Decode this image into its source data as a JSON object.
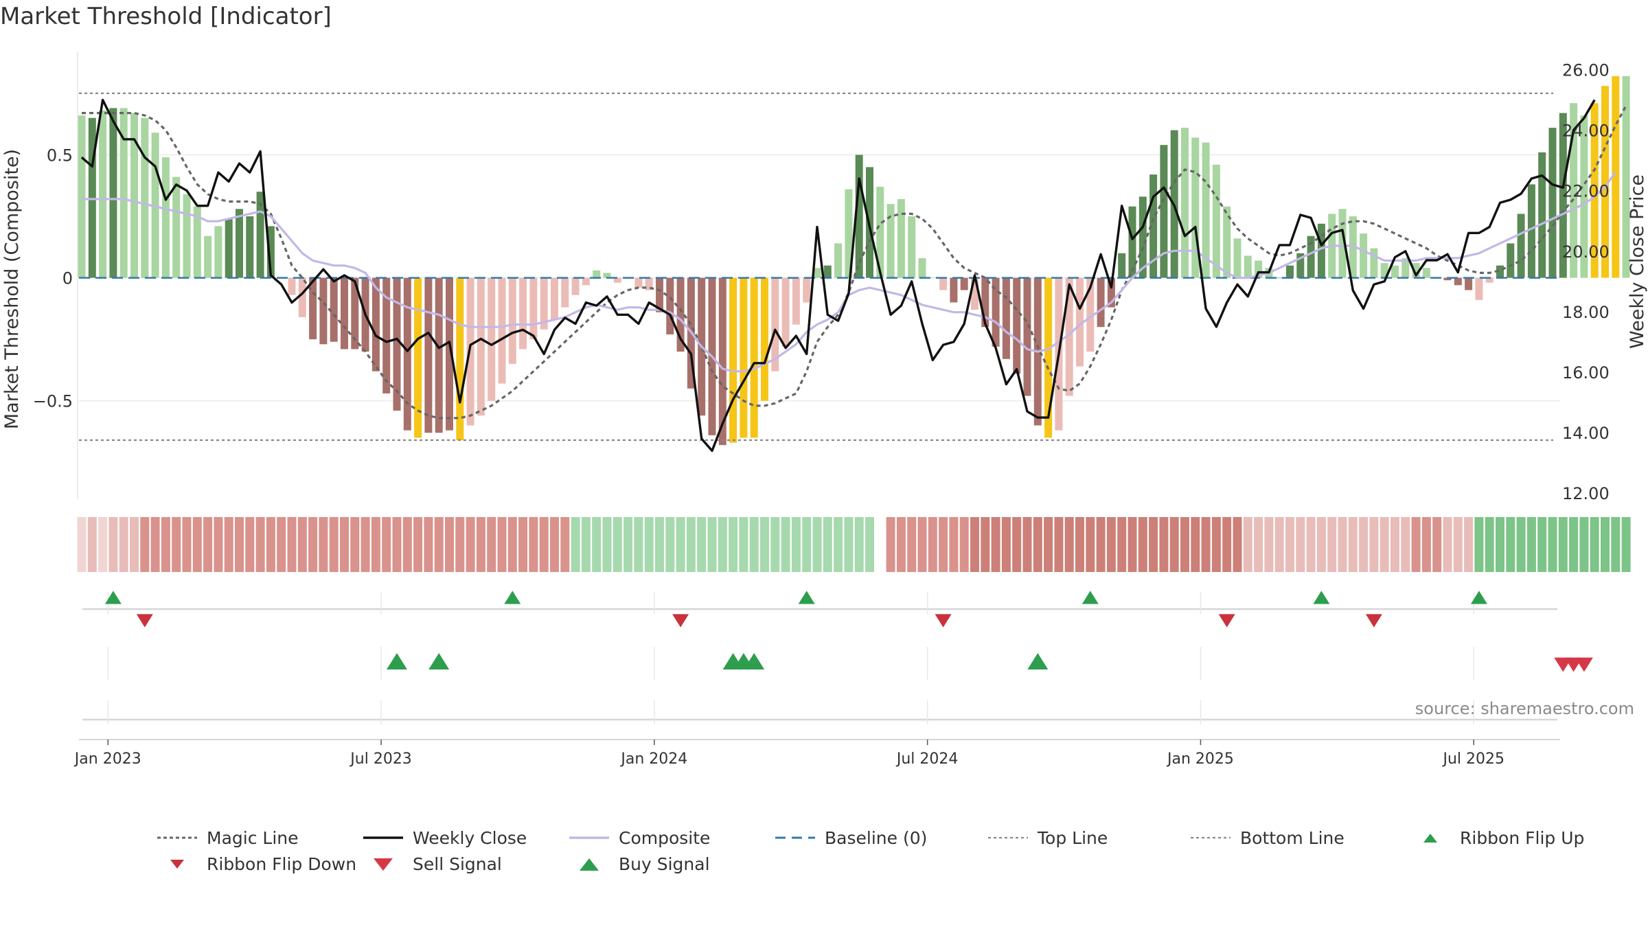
{
  "title": "Market Threshold [Indicator]",
  "source": "source: sharemaestro.com",
  "colors": {
    "bar_dark_green": "#5a8a55",
    "bar_light_green": "#a8d5a0",
    "bar_dark_red": "#a8706a",
    "bar_light_red": "#ebbcb6",
    "bar_yellow": "#f5c518",
    "weekly_close": "#111111",
    "composite": "#c2b8e6",
    "magic_line": "#666666",
    "baseline": "#3579a8",
    "threshold_line": "#888888",
    "buy_green": "#2e9e4e",
    "sell_red": "#d63848"
  },
  "legend": [
    {
      "key": "magic",
      "label": "Magic Line"
    },
    {
      "key": "close",
      "label": "Weekly Close"
    },
    {
      "key": "composite",
      "label": "Composite"
    },
    {
      "key": "baseline",
      "label": "Baseline (0)"
    },
    {
      "key": "top",
      "label": "Top Line"
    },
    {
      "key": "bottom",
      "label": "Bottom Line"
    },
    {
      "key": "flipup",
      "label": "Ribbon Flip Up"
    },
    {
      "key": "flipdown",
      "label": "Ribbon Flip Down"
    },
    {
      "key": "sell",
      "label": "Sell Signal"
    },
    {
      "key": "buy",
      "label": "Buy Signal"
    }
  ],
  "chart_data": {
    "type": "bar",
    "ylabel_left": "Market Threshold (Composite)",
    "ylabel_right": "Weekly Close Price",
    "left_ticks": [
      0.5,
      0,
      -0.5
    ],
    "left_tick_labels": [
      "0.5",
      "0",
      "−0.5"
    ],
    "left_ylim": [
      -0.9,
      0.92
    ],
    "right_ticks": [
      26,
      24,
      22,
      20,
      18,
      16,
      14,
      12
    ],
    "right_tick_labels": [
      "26.00",
      "24.00",
      "22.00",
      "20.00",
      "18.00",
      "16.00",
      "14.00",
      "12.00"
    ],
    "right_ylim": [
      11.8,
      26.6
    ],
    "x_ticks": [
      2.5,
      28.5,
      54.5,
      80.5,
      106.5,
      132.5
    ],
    "x_tick_labels": [
      "Jan 2023",
      "Jul 2023",
      "Jan 2024",
      "Jul 2024",
      "Jan 2025",
      "Jul 2025"
    ],
    "top_line": 0.75,
    "bottom_line": -0.66,
    "baseline": 0,
    "composite_bars": [
      0.66,
      0.65,
      0.68,
      0.69,
      0.69,
      0.67,
      0.65,
      0.59,
      0.49,
      0.41,
      0.34,
      0.29,
      0.17,
      0.21,
      0.24,
      0.28,
      0.25,
      0.35,
      0.21,
      0.0,
      -0.07,
      -0.16,
      -0.25,
      -0.27,
      -0.26,
      -0.29,
      -0.29,
      -0.3,
      -0.38,
      -0.47,
      -0.54,
      -0.62,
      -0.65,
      -0.63,
      -0.63,
      -0.62,
      -0.66,
      -0.6,
      -0.56,
      -0.5,
      -0.43,
      -0.35,
      -0.29,
      -0.25,
      -0.21,
      -0.17,
      -0.12,
      -0.07,
      -0.03,
      0.03,
      0.02,
      -0.02,
      0.0,
      -0.04,
      -0.05,
      -0.14,
      -0.23,
      -0.3,
      -0.45,
      -0.56,
      -0.64,
      -0.68,
      -0.67,
      -0.65,
      -0.65,
      -0.5,
      -0.38,
      -0.28,
      -0.19,
      -0.1,
      0.04,
      0.05,
      0.14,
      0.36,
      0.5,
      0.45,
      0.37,
      0.3,
      0.32,
      0.25,
      0.08,
      0.0,
      -0.05,
      -0.1,
      -0.05,
      -0.13,
      -0.2,
      -0.28,
      -0.33,
      -0.39,
      -0.48,
      -0.6,
      -0.65,
      -0.62,
      -0.48,
      -0.36,
      -0.3,
      -0.2,
      -0.12,
      0.1,
      0.29,
      0.33,
      0.42,
      0.54,
      0.6,
      0.61,
      0.57,
      0.55,
      0.46,
      0.29,
      0.16,
      0.09,
      0.07,
      0.04,
      0.0,
      0.05,
      0.1,
      0.17,
      0.22,
      0.26,
      0.28,
      0.25,
      0.18,
      0.12,
      0.06,
      0.05,
      0.08,
      0.06,
      0.04,
      0.0,
      -0.01,
      -0.03,
      -0.05,
      -0.09,
      -0.02,
      0.05,
      0.14,
      0.26,
      0.38,
      0.51,
      0.61,
      0.67,
      0.71,
      0.66,
      0.71,
      0.78,
      0.82,
      0.82
    ],
    "bar_color_codes": "LDLDLLLLLLLLLLDDDDDLLLDDDDDDDDDDYDDDYLLLLLLLLLLLLLLLLLLDDDDDDDYYYYLLLLLDLLDDLLLLLLLDDLDDDDDDYLLLLDDDDDDDDLLLLLLLLLDDDDDLLLLLLLLLLLDDDLLDDDDDDDLLYYY",
    "weekly_close": [
      23.1,
      22.8,
      25.0,
      24.3,
      23.7,
      23.7,
      23.1,
      22.8,
      21.7,
      22.2,
      22.0,
      21.5,
      21.5,
      22.6,
      22.3,
      22.9,
      22.6,
      23.3,
      19.2,
      18.9,
      18.3,
      18.6,
      19.0,
      19.4,
      19.0,
      19.2,
      19.0,
      17.9,
      17.2,
      17.0,
      17.1,
      16.7,
      17.1,
      17.3,
      16.8,
      17.0,
      15.0,
      16.9,
      17.1,
      16.9,
      17.1,
      17.3,
      17.4,
      17.2,
      16.6,
      17.4,
      17.8,
      17.6,
      18.3,
      18.2,
      18.5,
      17.9,
      17.9,
      17.6,
      18.3,
      18.1,
      17.9,
      17.1,
      16.6,
      13.8,
      13.4,
      14.3,
      15.1,
      15.7,
      16.3,
      16.3,
      17.4,
      16.8,
      17.2,
      16.6,
      20.8,
      17.9,
      17.7,
      18.6,
      22.4,
      20.8,
      19.3,
      17.9,
      18.2,
      19.0,
      17.6,
      16.4,
      16.9,
      17.0,
      17.6,
      19.2,
      17.6,
      16.8,
      15.6,
      16.1,
      14.7,
      14.5,
      14.5,
      16.6,
      18.9,
      18.1,
      18.8,
      19.9,
      18.8,
      21.5,
      20.4,
      20.8,
      21.8,
      22.1,
      21.5,
      20.5,
      20.8,
      18.1,
      17.5,
      18.3,
      18.9,
      18.5,
      19.3,
      19.3,
      20.2,
      20.2,
      21.2,
      21.1,
      20.2,
      20.6,
      20.7,
      18.7,
      18.1,
      18.9,
      19.0,
      19.8,
      20.0,
      19.2,
      19.7,
      19.7,
      19.9,
      19.3,
      20.6,
      20.6,
      20.8,
      21.6,
      21.7,
      21.9,
      22.4,
      22.5,
      22.2,
      22.1,
      24.0,
      24.4,
      25.0
    ],
    "composite_line": [
      0.32,
      0.32,
      0.32,
      0.32,
      0.32,
      0.31,
      0.3,
      0.29,
      0.28,
      0.27,
      0.26,
      0.25,
      0.23,
      0.23,
      0.24,
      0.25,
      0.26,
      0.27,
      0.25,
      0.2,
      0.15,
      0.1,
      0.07,
      0.06,
      0.05,
      0.05,
      0.04,
      0.02,
      -0.04,
      -0.08,
      -0.1,
      -0.12,
      -0.13,
      -0.14,
      -0.15,
      -0.17,
      -0.19,
      -0.2,
      -0.2,
      -0.2,
      -0.2,
      -0.19,
      -0.19,
      -0.19,
      -0.18,
      -0.17,
      -0.16,
      -0.14,
      -0.12,
      -0.11,
      -0.12,
      -0.13,
      -0.12,
      -0.12,
      -0.13,
      -0.13,
      -0.14,
      -0.17,
      -0.22,
      -0.28,
      -0.32,
      -0.37,
      -0.38,
      -0.38,
      -0.37,
      -0.35,
      -0.33,
      -0.3,
      -0.27,
      -0.22,
      -0.19,
      -0.17,
      -0.14,
      -0.07,
      -0.05,
      -0.04,
      -0.05,
      -0.06,
      -0.07,
      -0.09,
      -0.11,
      -0.12,
      -0.13,
      -0.14,
      -0.14,
      -0.15,
      -0.16,
      -0.18,
      -0.22,
      -0.25,
      -0.29,
      -0.3,
      -0.29,
      -0.26,
      -0.23,
      -0.19,
      -0.16,
      -0.13,
      -0.1,
      -0.05,
      0.0,
      0.04,
      0.07,
      0.1,
      0.11,
      0.11,
      0.11,
      0.08,
      0.05,
      0.02,
      0.0,
      0.0,
      0.01,
      0.02,
      0.04,
      0.06,
      0.08,
      0.1,
      0.12,
      0.13,
      0.13,
      0.13,
      0.11,
      0.09,
      0.07,
      0.07,
      0.07,
      0.07,
      0.08,
      0.08,
      0.08,
      0.08,
      0.09,
      0.1,
      0.12,
      0.14,
      0.16,
      0.18,
      0.2,
      0.22,
      0.24,
      0.26,
      0.28,
      0.3,
      0.33,
      0.37,
      0.43
    ],
    "magic_line": [
      0.67,
      0.67,
      0.67,
      0.67,
      0.67,
      0.67,
      0.66,
      0.64,
      0.6,
      0.53,
      0.45,
      0.38,
      0.34,
      0.32,
      0.31,
      0.31,
      0.31,
      0.3,
      0.26,
      0.16,
      0.05,
      0.0,
      -0.06,
      -0.1,
      -0.15,
      -0.2,
      -0.25,
      -0.3,
      -0.36,
      -0.42,
      -0.46,
      -0.51,
      -0.54,
      -0.56,
      -0.57,
      -0.57,
      -0.57,
      -0.56,
      -0.54,
      -0.52,
      -0.49,
      -0.46,
      -0.42,
      -0.38,
      -0.34,
      -0.3,
      -0.26,
      -0.22,
      -0.18,
      -0.14,
      -0.1,
      -0.07,
      -0.05,
      -0.04,
      -0.04,
      -0.05,
      -0.08,
      -0.13,
      -0.19,
      -0.28,
      -0.38,
      -0.44,
      -0.47,
      -0.5,
      -0.52,
      -0.52,
      -0.51,
      -0.49,
      -0.47,
      -0.38,
      -0.26,
      -0.2,
      -0.15,
      -0.06,
      0.06,
      0.15,
      0.22,
      0.25,
      0.26,
      0.26,
      0.24,
      0.2,
      0.14,
      0.08,
      0.04,
      0.02,
      0.0,
      -0.05,
      -0.08,
      -0.13,
      -0.18,
      -0.28,
      -0.37,
      -0.45,
      -0.46,
      -0.43,
      -0.36,
      -0.27,
      -0.17,
      -0.05,
      0.03,
      0.12,
      0.24,
      0.32,
      0.39,
      0.44,
      0.43,
      0.39,
      0.33,
      0.26,
      0.2,
      0.16,
      0.13,
      0.1,
      0.09,
      0.1,
      0.12,
      0.14,
      0.17,
      0.2,
      0.22,
      0.23,
      0.23,
      0.22,
      0.2,
      0.18,
      0.16,
      0.14,
      0.12,
      0.09,
      0.07,
      0.05,
      0.03,
      0.02,
      0.02,
      0.03,
      0.05,
      0.07,
      0.11,
      0.16,
      0.21,
      0.27,
      0.32,
      0.38,
      0.44,
      0.53,
      0.62,
      0.7
    ],
    "ribbon_colors": "ededddccccccccccccccccccccccccccccccccccccccccclllllllllllllllllllllllllllllxccccccccmmmmmmmmmmmmmmmmmmmmmmmmmmddddddddddddddddcccdddaaaaaaaaaaaaaaaddddddddddddddddddllllllllllllllllllllaaaaaaaaaaaaaaaaa",
    "flip_up_weeks": [
      3,
      41,
      69,
      96,
      118,
      133
    ],
    "flip_down_weeks": [
      6,
      57,
      82,
      109,
      123
    ],
    "buy_signal_weeks": [
      30,
      34,
      62,
      63,
      64,
      91
    ],
    "sell_signal_weeks": [
      141,
      142,
      143
    ]
  }
}
